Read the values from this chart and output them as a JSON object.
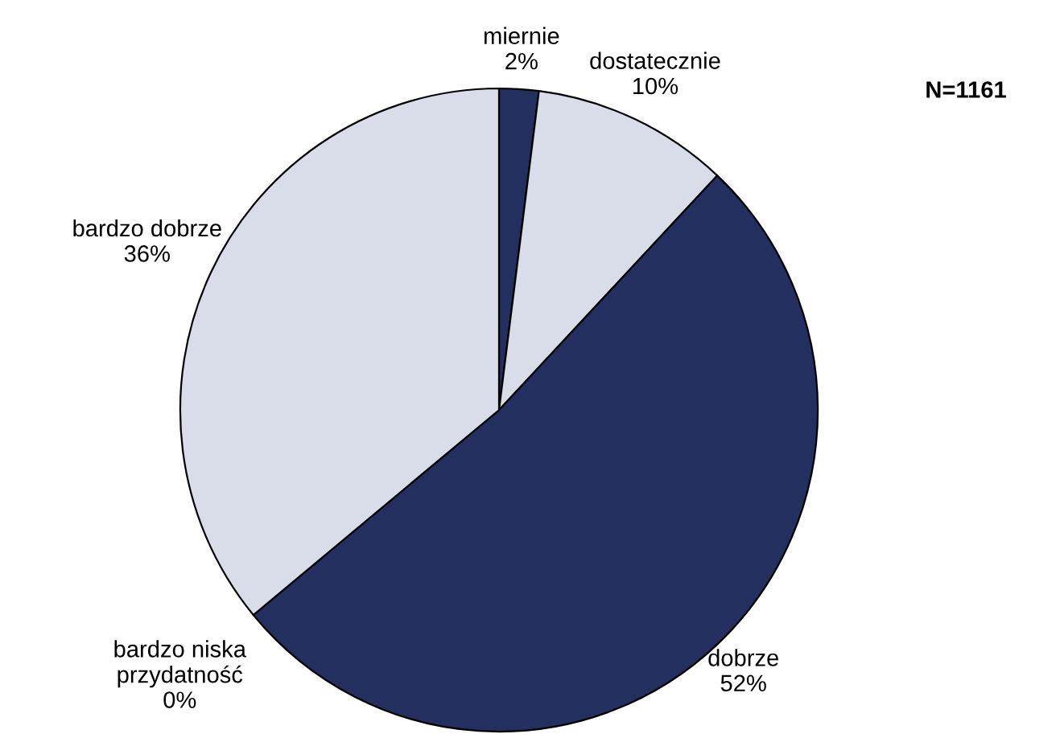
{
  "chart_data": {
    "type": "pie",
    "categories": [
      "miernie",
      "dostatecznie",
      "dobrze",
      "bardzo niska\nprzydatność",
      "bardzo dobrze"
    ],
    "values": [
      2,
      10,
      52,
      0,
      36
    ],
    "colors": [
      "#232f5f",
      "#d8dde9",
      "#232f5f",
      "#232f5f",
      "#d8dde9"
    ],
    "value_labels": [
      "2%",
      "10%",
      "52%",
      "0%",
      "36%"
    ],
    "annotations": [
      "N=1161"
    ],
    "legend": false
  }
}
